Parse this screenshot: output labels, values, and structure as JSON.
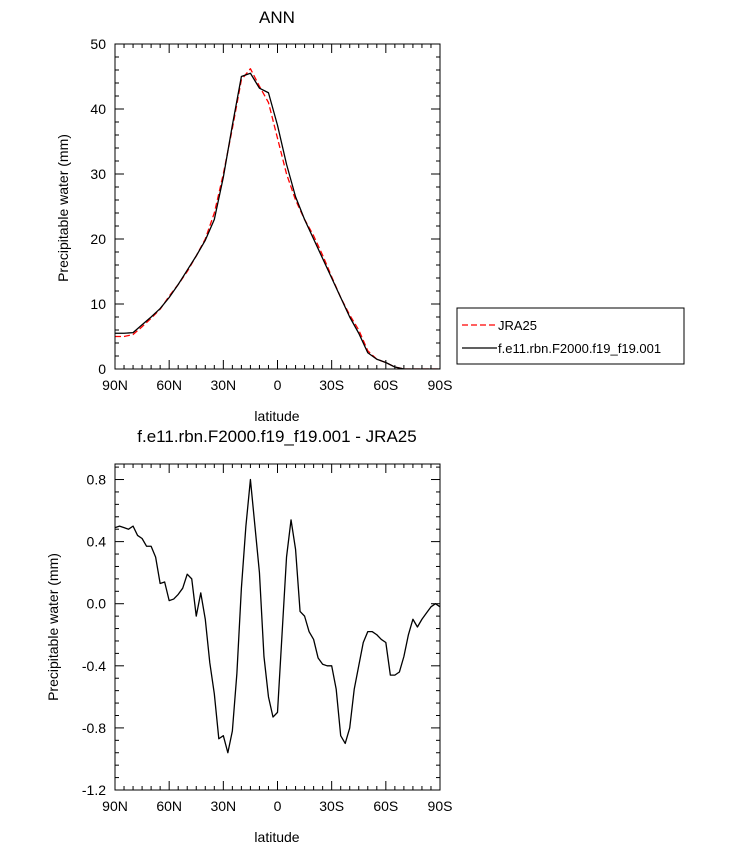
{
  "chart_data": [
    {
      "type": "line",
      "title": "ANN",
      "xlabel": "latitude",
      "ylabel": "Precipitable water (mm)",
      "xlim": [
        90,
        -90
      ],
      "ylim": [
        0,
        50
      ],
      "x_ticks": [
        {
          "value": 90,
          "label": "90N"
        },
        {
          "value": 60,
          "label": "60N"
        },
        {
          "value": 30,
          "label": "30N"
        },
        {
          "value": 0,
          "label": "0"
        },
        {
          "value": -30,
          "label": "30S"
        },
        {
          "value": -60,
          "label": "60S"
        },
        {
          "value": -90,
          "label": "90S"
        }
      ],
      "y_ticks": [
        {
          "value": 0,
          "label": "0"
        },
        {
          "value": 10,
          "label": "10"
        },
        {
          "value": 20,
          "label": "20"
        },
        {
          "value": 30,
          "label": "30"
        },
        {
          "value": 40,
          "label": "40"
        },
        {
          "value": 50,
          "label": "50"
        }
      ],
      "legend_position": "right",
      "series": [
        {
          "name": "JRA25",
          "color": "#ff0000",
          "dash": "dashed",
          "x": [
            90,
            85,
            80,
            75,
            70,
            65,
            60,
            55,
            50,
            45,
            40,
            35,
            30,
            25,
            20,
            15,
            10,
            5,
            0,
            -5,
            -10,
            -15,
            -20,
            -25,
            -30,
            -35,
            -40,
            -45,
            -50,
            -55,
            -60,
            -65,
            -70,
            -75,
            -80,
            -85,
            -90
          ],
          "y": [
            5.0,
            5.0,
            5.3,
            6.5,
            7.8,
            9.2,
            11.2,
            13.0,
            15.0,
            17.4,
            20.0,
            24.0,
            30.0,
            37.0,
            44.5,
            46.2,
            43.5,
            41.0,
            35.5,
            30.0,
            26.0,
            23.0,
            20.5,
            17.5,
            14.2,
            11.0,
            8.3,
            6.0,
            2.8,
            1.5,
            1.0,
            0.3,
            0.0,
            0.0,
            0.0,
            0.0,
            0.0
          ]
        },
        {
          "name": "f.e11.rbn.F2000.f19_f19.001",
          "color": "#000000",
          "dash": "solid",
          "x": [
            90,
            85,
            80,
            75,
            70,
            65,
            60,
            55,
            50,
            45,
            40,
            35,
            30,
            25,
            20,
            15,
            10,
            5,
            0,
            -5,
            -10,
            -15,
            -20,
            -25,
            -30,
            -35,
            -40,
            -45,
            -50,
            -55,
            -60,
            -65,
            -70,
            -75,
            -80,
            -85,
            -90
          ],
          "y": [
            5.5,
            5.5,
            5.6,
            6.8,
            8.0,
            9.3,
            11.0,
            13.0,
            15.2,
            17.4,
            19.8,
            23.0,
            29.5,
            37.5,
            45.0,
            45.5,
            43.2,
            42.5,
            37.5,
            31.5,
            26.5,
            23.0,
            20.0,
            17.0,
            14.0,
            11.0,
            8.0,
            5.5,
            2.5,
            1.5,
            1.0,
            0.3,
            0.0,
            0.0,
            0.0,
            0.0,
            0.0
          ]
        }
      ]
    },
    {
      "type": "line",
      "title": "f.e11.rbn.F2000.f19_f19.001 - JRA25",
      "xlabel": "latitude",
      "ylabel": "Precipitable water (mm)",
      "xlim": [
        90,
        -90
      ],
      "ylim": [
        -1.2,
        0.9
      ],
      "x_ticks": [
        {
          "value": 90,
          "label": "90N"
        },
        {
          "value": 60,
          "label": "60N"
        },
        {
          "value": 30,
          "label": "30N"
        },
        {
          "value": 0,
          "label": "0"
        },
        {
          "value": -30,
          "label": "30S"
        },
        {
          "value": -60,
          "label": "60S"
        },
        {
          "value": -90,
          "label": "90S"
        }
      ],
      "y_ticks": [
        {
          "value": 0.8,
          "label": "0.8"
        },
        {
          "value": 0.4,
          "label": "0.4"
        },
        {
          "value": 0.0,
          "label": "0.0"
        },
        {
          "value": -0.4,
          "label": "-0.4"
        },
        {
          "value": -0.8,
          "label": "-0.8"
        },
        {
          "value": -1.2,
          "label": "-1.2"
        }
      ],
      "series": [
        {
          "color": "#000000",
          "dash": "solid",
          "x": [
            90,
            87.5,
            85,
            82.5,
            80,
            77.5,
            75,
            72.5,
            70,
            67.5,
            65,
            62.5,
            60,
            57.5,
            55,
            52.5,
            50,
            47.5,
            45,
            42.5,
            40,
            37.5,
            35,
            32.5,
            30,
            27.5,
            25,
            22.5,
            20,
            17.5,
            15,
            12.5,
            10,
            7.5,
            5,
            2.5,
            0,
            -2.5,
            -5,
            -7.5,
            -10,
            -12.5,
            -15,
            -17.5,
            -20,
            -22.5,
            -25,
            -27.5,
            -30,
            -32.5,
            -35,
            -37.5,
            -40,
            -42.5,
            -45,
            -47.5,
            -50,
            -52.5,
            -55,
            -57.5,
            -60,
            -62.5,
            -65,
            -67.5,
            -70,
            -72.5,
            -75,
            -77.5,
            -80,
            -82.5,
            -85,
            -87.5,
            -90
          ],
          "y": [
            0.49,
            0.5,
            0.49,
            0.48,
            0.5,
            0.44,
            0.42,
            0.37,
            0.37,
            0.3,
            0.13,
            0.14,
            0.02,
            0.03,
            0.06,
            0.1,
            0.19,
            0.16,
            -0.08,
            0.07,
            -0.1,
            -0.38,
            -0.58,
            -0.87,
            -0.85,
            -0.96,
            -0.82,
            -0.45,
            0.1,
            0.5,
            0.8,
            0.5,
            0.2,
            -0.34,
            -0.6,
            -0.73,
            -0.7,
            -0.2,
            0.3,
            0.54,
            0.35,
            -0.05,
            -0.08,
            -0.18,
            -0.23,
            -0.35,
            -0.39,
            -0.4,
            -0.4,
            -0.55,
            -0.85,
            -0.9,
            -0.8,
            -0.55,
            -0.4,
            -0.25,
            -0.18,
            -0.18,
            -0.2,
            -0.23,
            -0.25,
            -0.46,
            -0.46,
            -0.44,
            -0.34,
            -0.2,
            -0.1,
            -0.15,
            -0.1,
            -0.06,
            -0.02,
            0.0,
            -0.02
          ]
        }
      ]
    }
  ]
}
